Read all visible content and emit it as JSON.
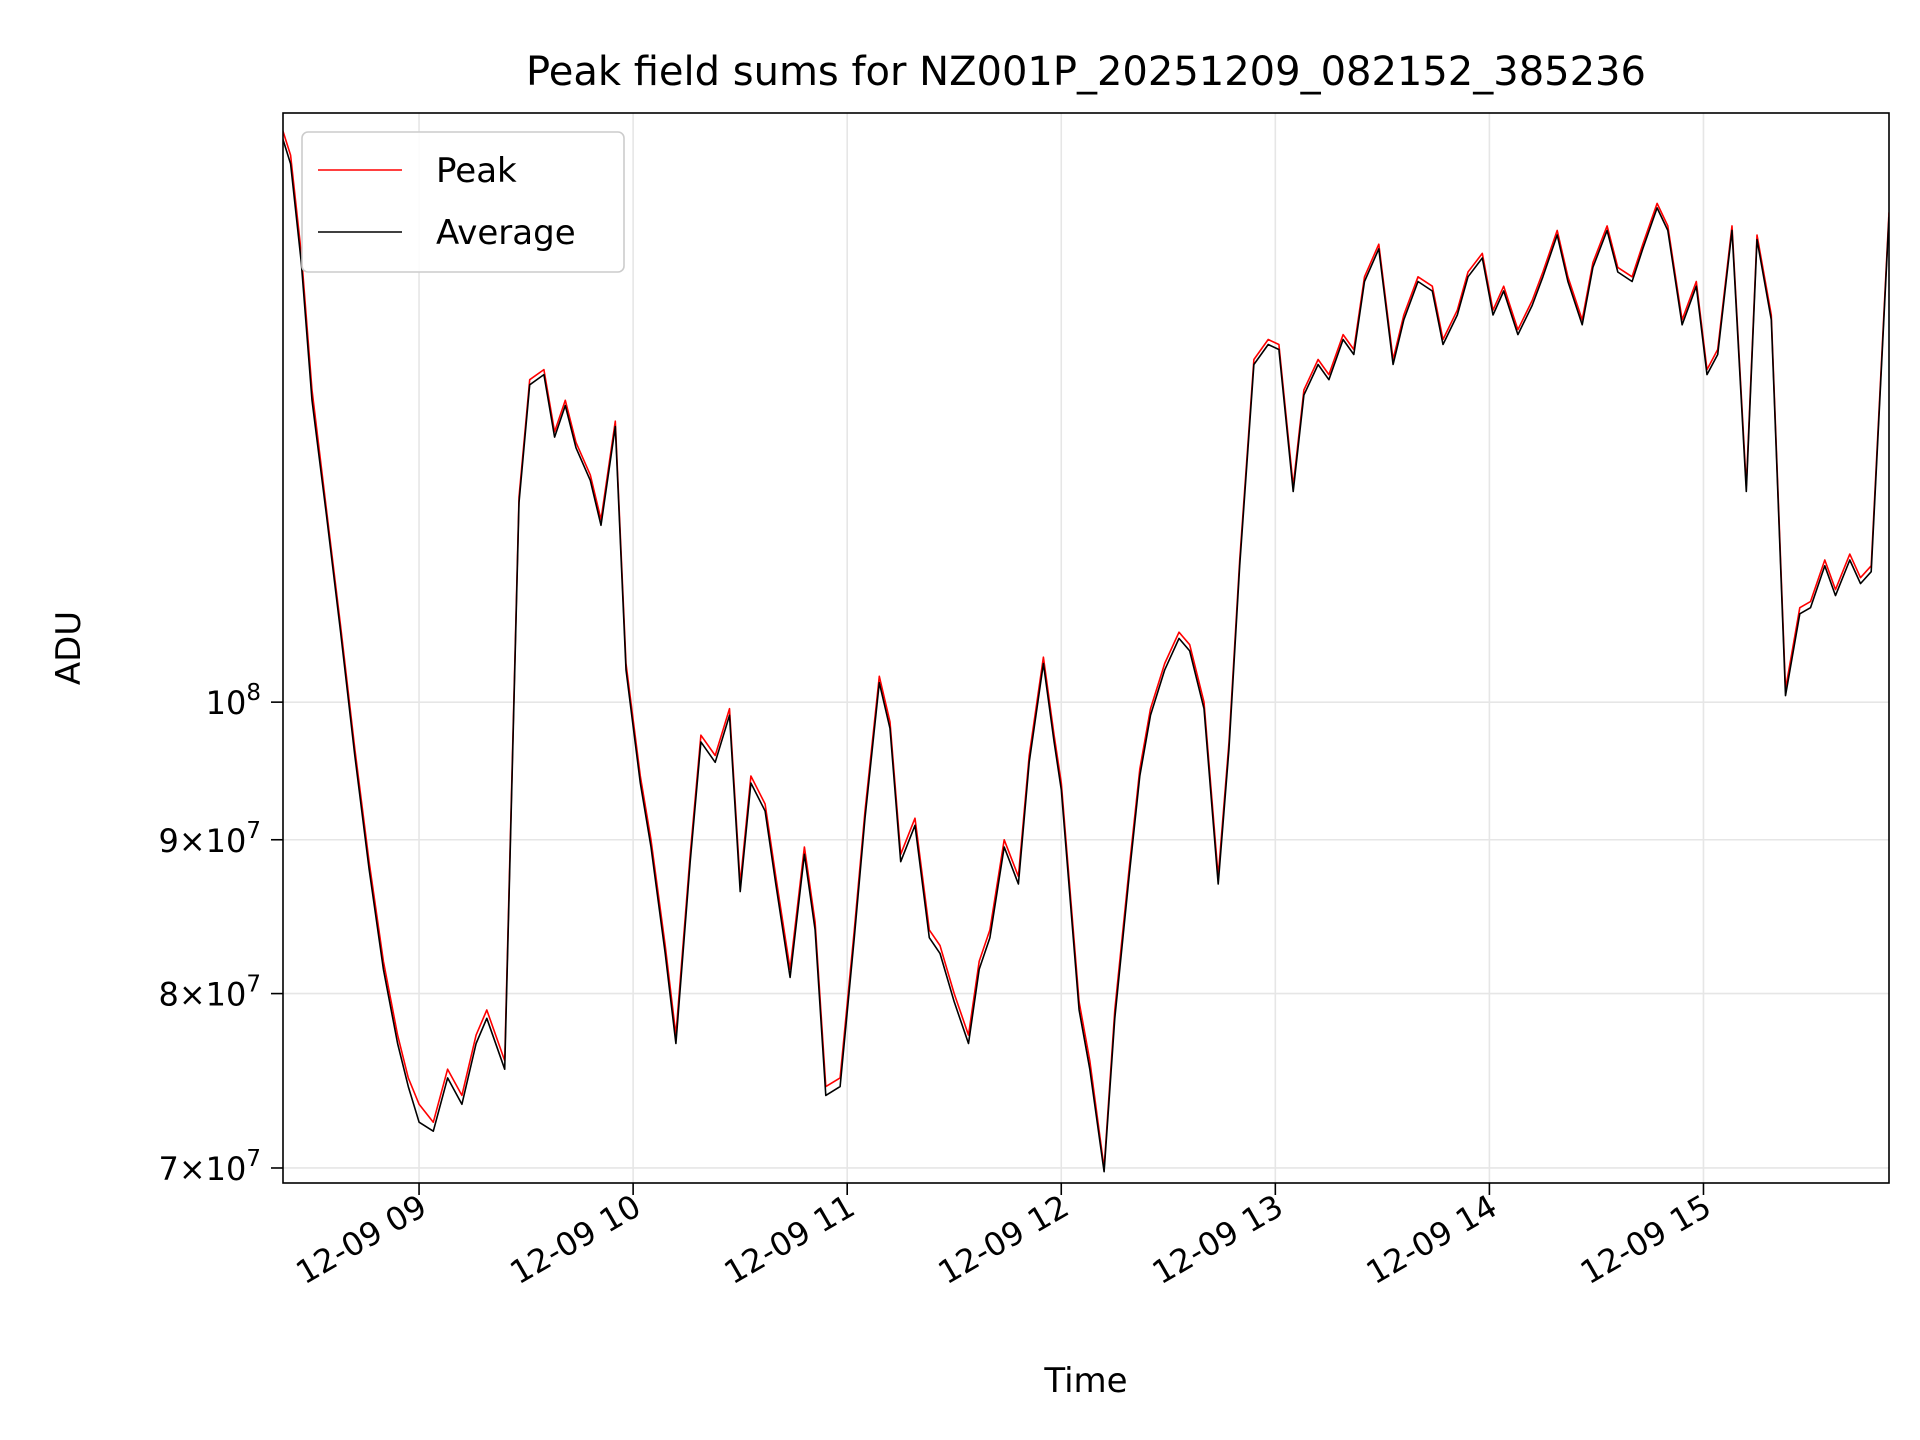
{
  "chart_data": {
    "type": "line",
    "title": "Peak field sums for NZ001P_20251209_082152_385236",
    "xlabel": "Time",
    "ylabel": "ADU",
    "y_scale": "log",
    "grid": true,
    "legend_position": "top-left",
    "x_range": [
      "2025-12-09 08:21:52",
      "2025-12-09 15:52:00"
    ],
    "y_range": [
      69200000,
      157000000
    ],
    "x_ticks": [
      {
        "label": "12-09 09",
        "t": "2025-12-09 09:00"
      },
      {
        "label": "12-09 10",
        "t": "2025-12-09 10:00"
      },
      {
        "label": "12-09 11",
        "t": "2025-12-09 11:00"
      },
      {
        "label": "12-09 12",
        "t": "2025-12-09 12:00"
      },
      {
        "label": "12-09 13",
        "t": "2025-12-09 13:00"
      },
      {
        "label": "12-09 14",
        "t": "2025-12-09 14:00"
      },
      {
        "label": "12-09 15",
        "t": "2025-12-09 15:00"
      }
    ],
    "y_ticks": [
      {
        "value": 70000000,
        "mantissa": "7",
        "base": "10",
        "exp": "7"
      },
      {
        "value": 80000000,
        "mantissa": "8",
        "base": "10",
        "exp": "7"
      },
      {
        "value": 90000000,
        "mantissa": "9",
        "base": "10",
        "exp": "7"
      },
      {
        "value": 100000000,
        "mantissa": "",
        "base": "10",
        "exp": "8"
      }
    ],
    "times": [
      "08:21",
      "08:24",
      "08:27",
      "08:30",
      "08:34",
      "08:38",
      "08:42",
      "08:46",
      "08:50",
      "08:54",
      "08:57",
      "09:00",
      "09:04",
      "09:08",
      "09:12",
      "09:16",
      "09:19",
      "09:24",
      "09:28",
      "09:31",
      "09:35",
      "09:38",
      "09:41",
      "09:44",
      "09:48",
      "09:51",
      "09:55",
      "09:58",
      "10:02",
      "10:05",
      "10:09",
      "10:12",
      "10:16",
      "10:19",
      "10:23",
      "10:27",
      "10:30",
      "10:33",
      "10:37",
      "10:40",
      "10:44",
      "10:48",
      "10:51",
      "10:54",
      "10:58",
      "11:02",
      "11:05",
      "11:09",
      "11:12",
      "11:15",
      "11:19",
      "11:23",
      "11:26",
      "11:30",
      "11:34",
      "11:37",
      "11:40",
      "11:44",
      "11:48",
      "11:51",
      "11:55",
      "11:58",
      "12:00",
      "12:05",
      "12:08",
      "12:12",
      "12:15",
      "12:19",
      "12:22",
      "12:25",
      "12:29",
      "12:33",
      "12:36",
      "12:40",
      "12:44",
      "12:47",
      "12:50",
      "12:54",
      "12:58",
      "13:01",
      "13:05",
      "13:08",
      "13:12",
      "13:15",
      "13:19",
      "13:22",
      "13:25",
      "13:29",
      "13:33",
      "13:36",
      "13:40",
      "13:44",
      "13:47",
      "13:51",
      "13:54",
      "13:58",
      "14:01",
      "14:04",
      "14:08",
      "14:12",
      "14:15",
      "14:19",
      "14:22",
      "14:26",
      "14:29",
      "14:33",
      "14:36",
      "14:40",
      "14:43",
      "14:47",
      "14:50",
      "14:54",
      "14:58",
      "15:01",
      "15:04",
      "15:08",
      "15:12",
      "15:15",
      "15:19",
      "15:23",
      "15:27",
      "15:30",
      "15:34",
      "15:37",
      "15:41",
      "15:44",
      "15:47",
      "15:52"
    ],
    "series": [
      {
        "name": "Peak",
        "color": "#ff0000",
        "values": [
          156000000,
          152000000,
          141000000,
          127000000,
          116000000,
          106000000,
          96500000,
          88500000,
          82000000,
          77500000,
          75000000,
          73500000,
          72500000,
          75500000,
          74000000,
          77500000,
          79000000,
          76000000,
          117000000,
          128000000,
          129000000,
          123000000,
          126000000,
          122000000,
          119000000,
          115000000,
          124000000,
          103000000,
          94500000,
          90000000,
          83000000,
          77500000,
          89000000,
          97500000,
          96000000,
          99500000,
          87000000,
          94500000,
          92500000,
          87500000,
          81500000,
          89500000,
          84500000,
          74500000,
          75000000,
          84000000,
          92000000,
          102000000,
          98500000,
          89000000,
          91500000,
          84000000,
          83000000,
          80000000,
          77500000,
          82000000,
          84000000,
          90000000,
          87500000,
          96000000,
          103500000,
          97500000,
          94000000,
          79500000,
          76000000,
          70000000,
          79000000,
          88000000,
          95000000,
          99500000,
          103000000,
          105500000,
          104500000,
          100000000,
          87500000,
          97000000,
          111500000,
          130000000,
          132000000,
          131500000,
          118000000,
          127000000,
          130000000,
          128500000,
          132500000,
          131000000,
          138500000,
          142000000,
          130000000,
          134500000,
          138500000,
          137500000,
          132000000,
          135000000,
          139000000,
          141000000,
          135000000,
          137500000,
          133000000,
          136000000,
          139000000,
          143500000,
          138500000,
          134000000,
          140000000,
          144000000,
          139500000,
          138500000,
          142000000,
          146500000,
          144000000,
          134000000,
          138000000,
          129000000,
          131000000,
          144000000,
          118000000,
          143000000,
          134500000,
          101000000,
          107500000,
          108000000,
          111500000,
          109000000,
          112000000,
          110000000,
          111000000,
          145500000
        ]
      },
      {
        "name": "Average",
        "color": "#000000",
        "values": [
          155000000,
          151000000,
          140000000,
          126000000,
          115500000,
          105500000,
          96000000,
          88000000,
          81500000,
          77000000,
          74500000,
          72500000,
          72000000,
          75000000,
          73500000,
          77000000,
          78500000,
          75500000,
          116500000,
          127500000,
          128500000,
          122500000,
          125500000,
          121500000,
          118500000,
          114500000,
          123500000,
          102500000,
          94000000,
          89500000,
          82500000,
          77000000,
          88500000,
          97000000,
          95500000,
          99000000,
          86500000,
          94000000,
          92000000,
          87000000,
          81000000,
          89000000,
          84000000,
          74000000,
          74500000,
          83500000,
          91500000,
          101500000,
          98000000,
          88500000,
          91000000,
          83500000,
          82500000,
          79500000,
          77000000,
          81500000,
          83500000,
          89500000,
          87000000,
          95500000,
          103000000,
          97000000,
          93500000,
          79000000,
          75500000,
          69800000,
          78500000,
          87500000,
          94500000,
          99000000,
          102500000,
          105000000,
          104000000,
          99500000,
          87000000,
          96500000,
          111000000,
          129500000,
          131500000,
          131000000,
          117500000,
          126500000,
          129500000,
          128000000,
          132000000,
          130500000,
          138000000,
          141500000,
          129500000,
          134000000,
          138000000,
          137000000,
          131500000,
          134500000,
          138500000,
          140500000,
          134500000,
          137000000,
          132500000,
          135500000,
          138500000,
          143000000,
          138000000,
          133500000,
          139500000,
          143500000,
          139000000,
          138000000,
          141500000,
          146000000,
          143500000,
          133500000,
          137500000,
          128500000,
          130500000,
          143500000,
          117500000,
          142500000,
          134000000,
          100500000,
          107000000,
          107500000,
          111000000,
          108500000,
          111500000,
          109500000,
          110500000,
          145000000
        ]
      }
    ]
  }
}
